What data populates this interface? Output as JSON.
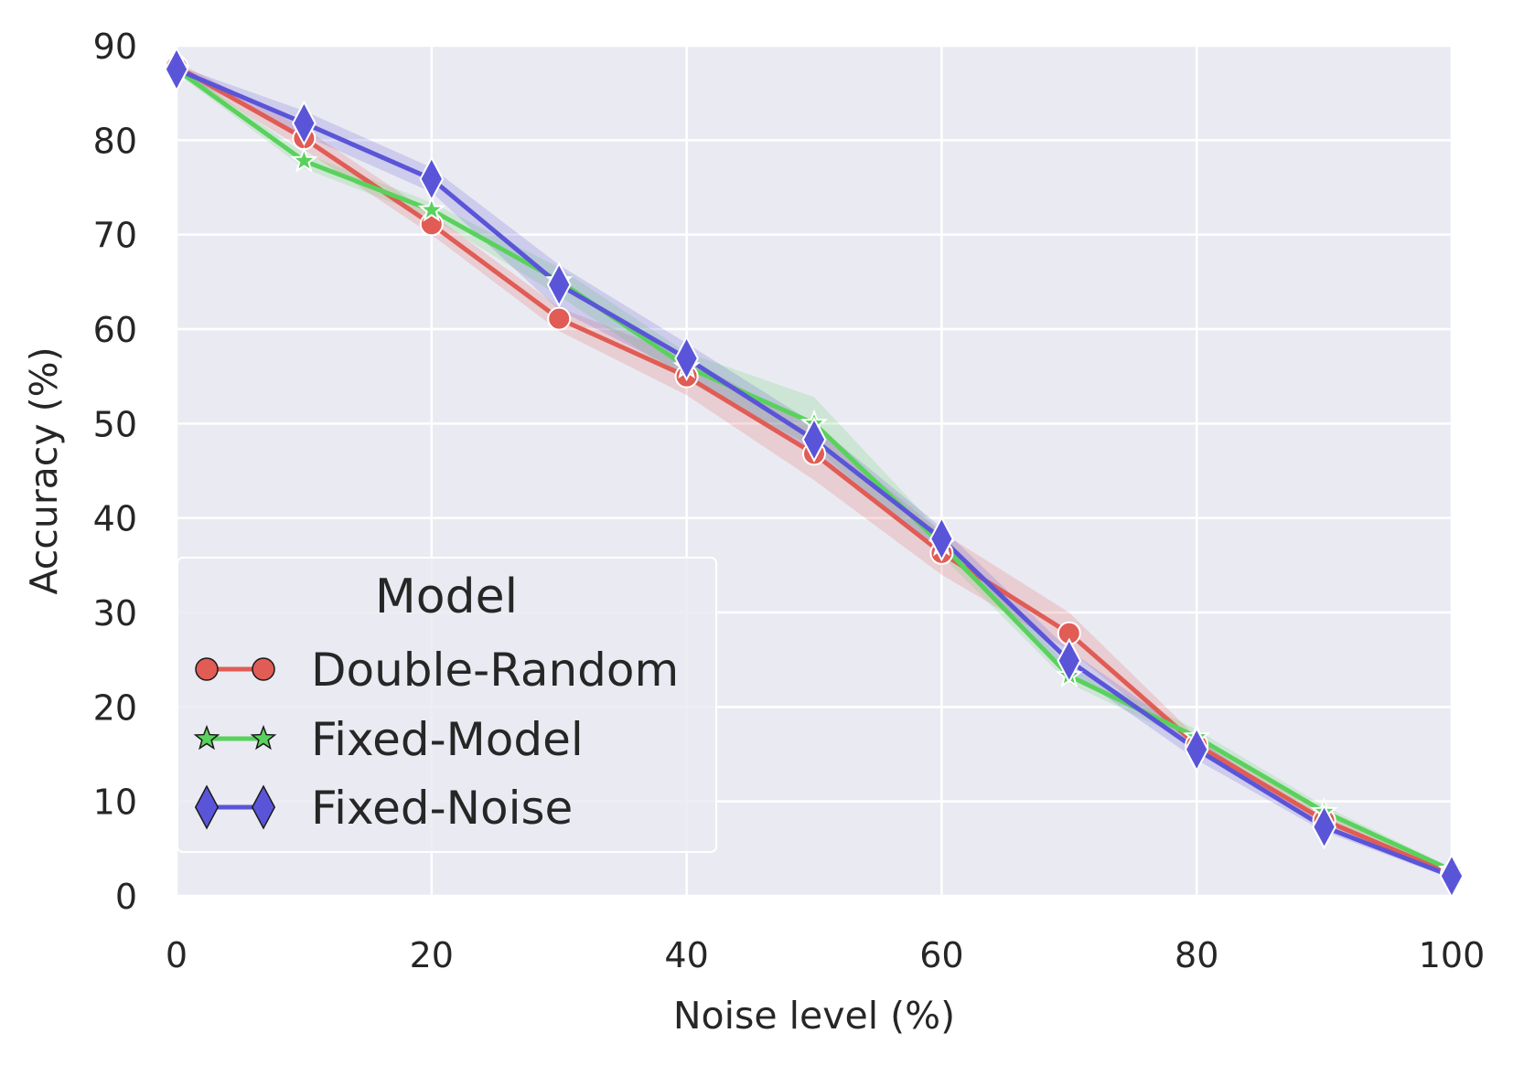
{
  "chart_data": {
    "type": "line",
    "title": "",
    "xlabel": "Noise level (%)",
    "ylabel": "Accuracy (%)",
    "xlim": [
      0,
      100
    ],
    "ylim": [
      0,
      90
    ],
    "xticks": [
      0,
      20,
      40,
      60,
      80,
      100
    ],
    "yticks": [
      0,
      10,
      20,
      30,
      40,
      50,
      60,
      70,
      80,
      90
    ],
    "grid": true,
    "legend": {
      "title": "Model",
      "location": "lower-left"
    },
    "x": [
      0,
      10,
      20,
      30,
      40,
      50,
      60,
      70,
      80,
      90,
      100
    ],
    "series": [
      {
        "name": "Double-Random",
        "color": "#e05c55",
        "marker": "circle",
        "values": [
          87.8,
          80.2,
          71.1,
          61.1,
          55.0,
          46.8,
          36.3,
          27.8,
          16.0,
          8.0,
          2.3
        ],
        "ci_lower": [
          87.3,
          79.0,
          70.0,
          59.8,
          53.0,
          44.0,
          34.0,
          26.0,
          15.2,
          7.4,
          2.0
        ],
        "ci_upper": [
          88.3,
          81.3,
          72.2,
          62.3,
          57.0,
          49.5,
          38.5,
          30.0,
          16.8,
          8.6,
          2.6
        ]
      },
      {
        "name": "Fixed-Model",
        "color": "#59d25d",
        "marker": "star",
        "values": [
          87.5,
          77.8,
          72.6,
          65.1,
          56.0,
          50.0,
          37.2,
          23.3,
          16.8,
          8.9,
          2.7
        ],
        "ci_lower": [
          87.1,
          77.0,
          71.8,
          63.5,
          54.5,
          47.5,
          36.0,
          22.5,
          16.0,
          8.3,
          2.4
        ],
        "ci_upper": [
          87.9,
          78.6,
          73.4,
          66.5,
          57.5,
          52.8,
          38.4,
          24.2,
          17.6,
          9.5,
          3.0
        ]
      },
      {
        "name": "Fixed-Noise",
        "color": "#5a55d8",
        "marker": "diamond",
        "values": [
          87.5,
          81.8,
          75.9,
          64.7,
          56.9,
          48.3,
          37.8,
          24.9,
          15.5,
          7.3,
          2.1
        ],
        "ci_lower": [
          87.1,
          80.5,
          74.5,
          62.0,
          55.2,
          46.5,
          36.6,
          23.8,
          14.4,
          6.8,
          1.8
        ],
        "ci_upper": [
          87.9,
          83.1,
          77.1,
          66.8,
          58.5,
          50.0,
          39.0,
          26.0,
          16.6,
          7.8,
          2.4
        ]
      }
    ]
  }
}
